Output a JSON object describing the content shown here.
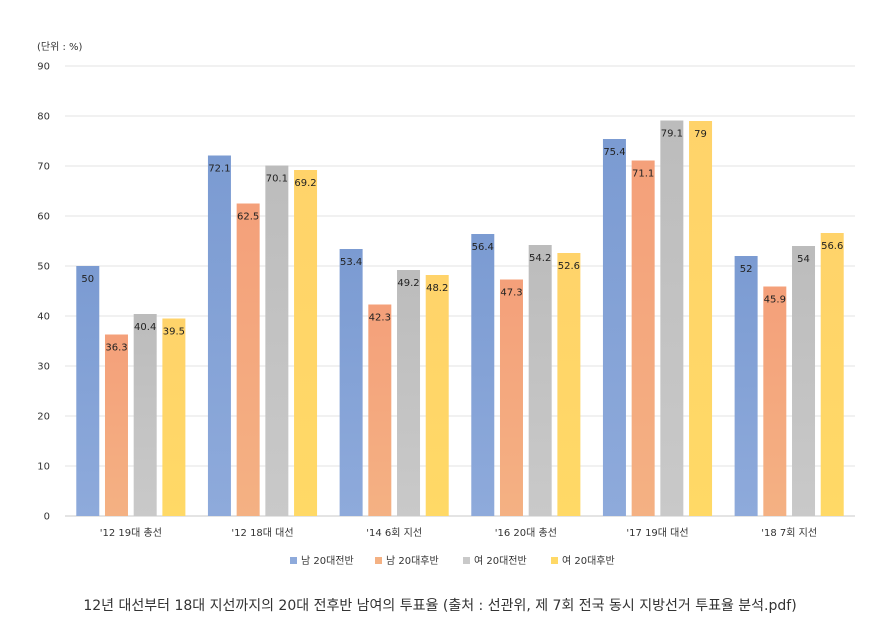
{
  "caption": "12년 대선부터 18대 지선까지의 20대 전후반 남여의 투표율 (출처 : 선관위, 제 7회 전국 동시 지방선거 투표율 분석.pdf)",
  "chart_data": {
    "type": "bar",
    "unit_label": "(단위 : %)",
    "categories": [
      "'12 19대 총선",
      "'12 18대 대선",
      "'14 6회 지선",
      "'16 20대 총선",
      "'17 19대 대선",
      "'18 7회 지선"
    ],
    "series": [
      {
        "name": "남 20대전반",
        "color": "#8eaadb",
        "color_dark": "#7b9bd2",
        "values": [
          50,
          72.1,
          53.4,
          56.4,
          75.4,
          52
        ]
      },
      {
        "name": "남 20대후반",
        "color": "#f4b183",
        "color_dark": "#f4a07a",
        "values": [
          36.3,
          62.5,
          42.3,
          47.3,
          71.1,
          45.9
        ]
      },
      {
        "name": "여 20대전반",
        "color": "#c9c9c9",
        "color_dark": "#bcbcbc",
        "values": [
          40.4,
          70.1,
          49.2,
          54.2,
          79.1,
          54
        ]
      },
      {
        "name": "여 20대후반",
        "color": "#ffd966",
        "color_dark": "#ffd36a",
        "values": [
          39.5,
          69.2,
          48.2,
          52.6,
          79,
          56.6
        ]
      }
    ],
    "value_labels": [
      [
        "50",
        "72.1",
        "53.4",
        "56.4",
        "75.4",
        "52"
      ],
      [
        "36.3",
        "62.5",
        "42.3",
        "47.3",
        "71.1",
        "45.9"
      ],
      [
        "40.4",
        "70.1",
        "49.2",
        "54.2",
        "79.1",
        "54"
      ],
      [
        "39.5",
        "69.2",
        "48.2",
        "52.6",
        "79",
        "56.6"
      ]
    ],
    "y_ticks": [
      "0",
      "10",
      "20",
      "30",
      "40",
      "50",
      "60",
      "70",
      "80",
      "90"
    ],
    "ylim": [
      0,
      90
    ],
    "grid": true,
    "legend_position": "bottom"
  }
}
